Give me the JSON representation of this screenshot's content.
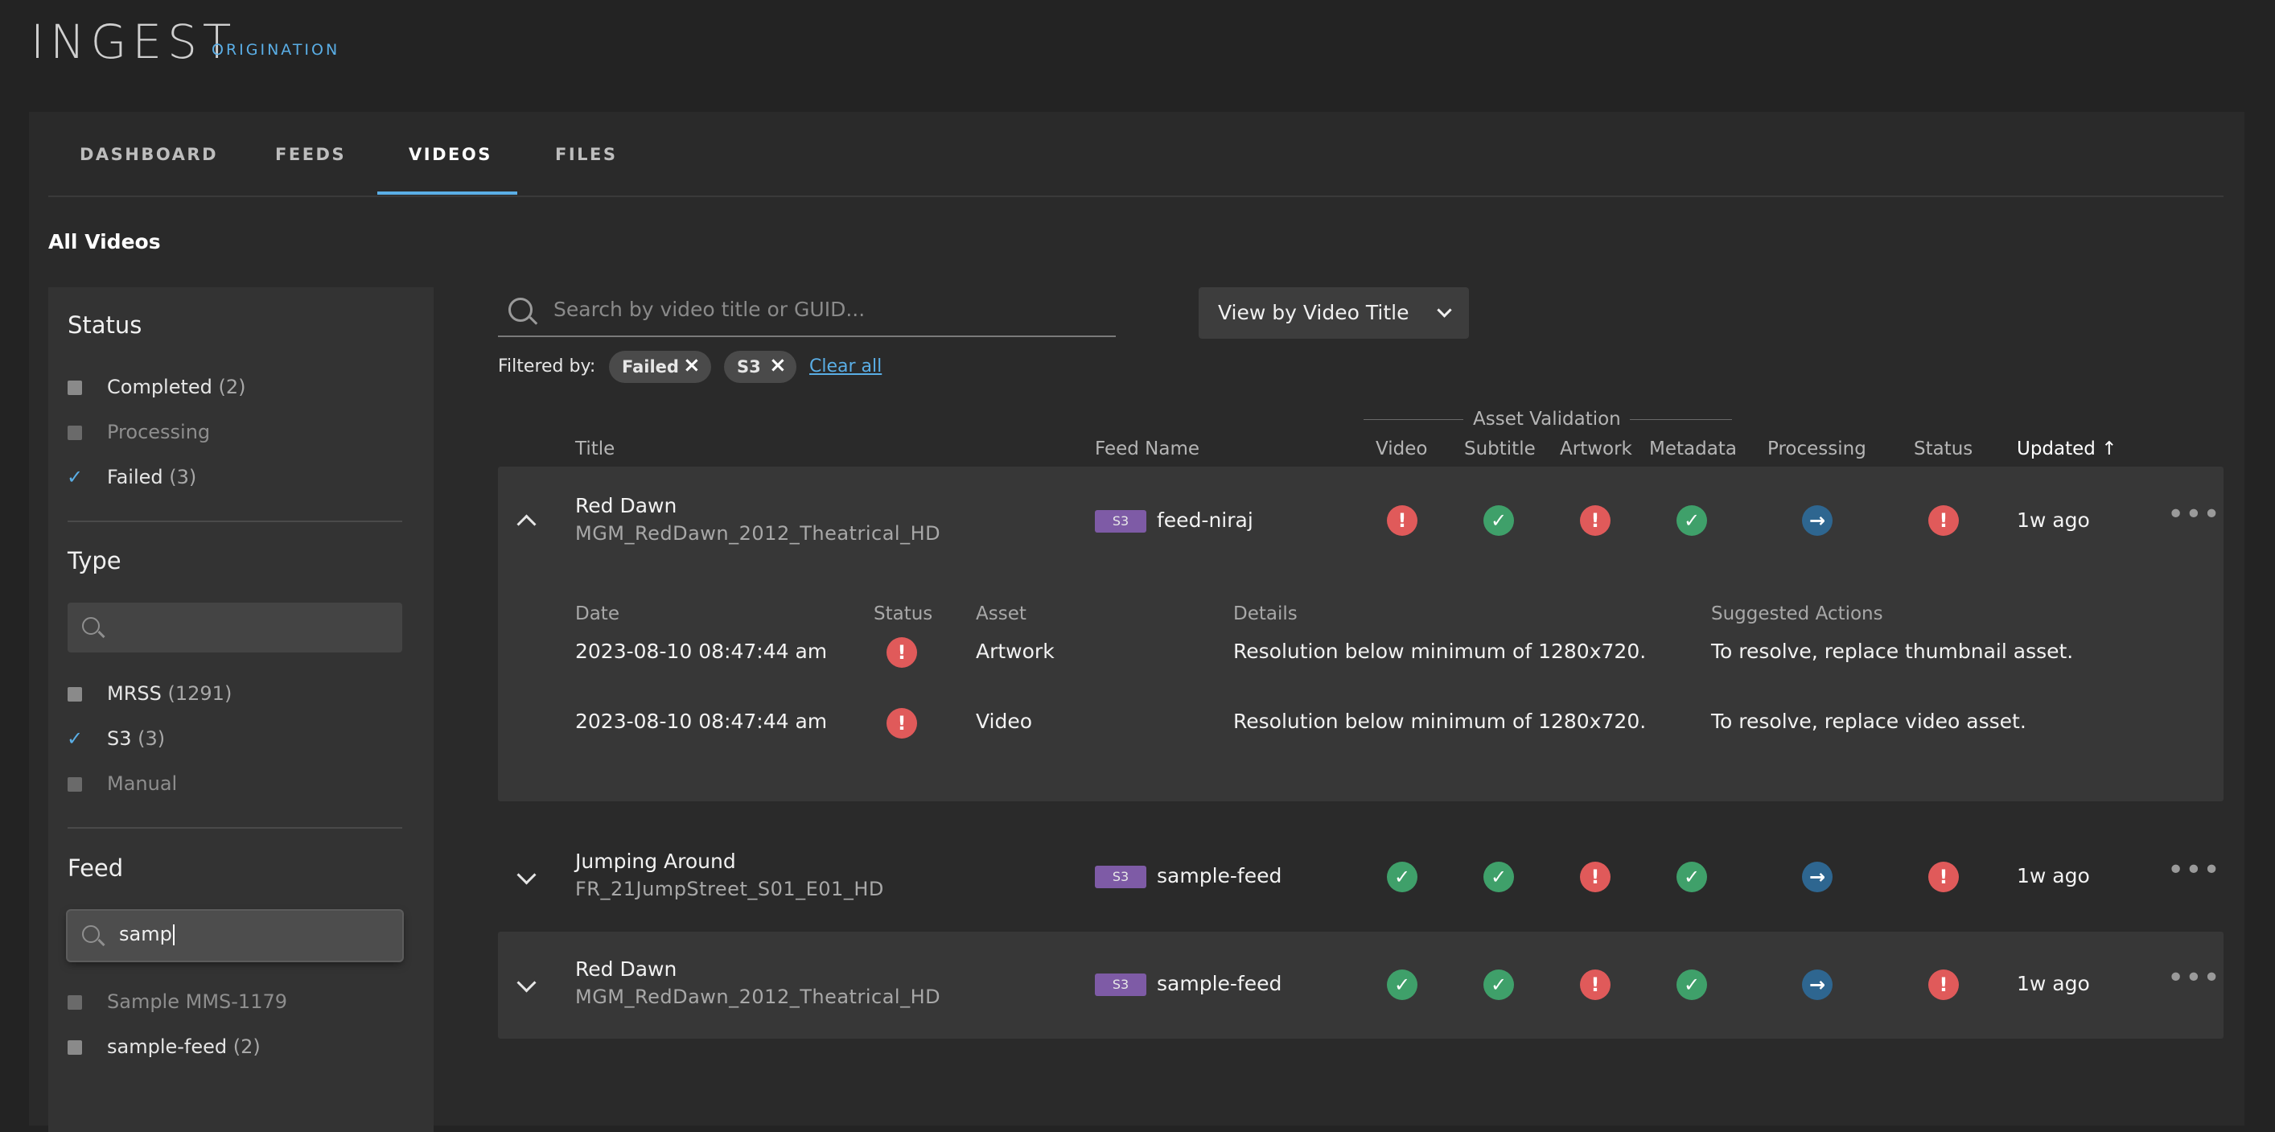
{
  "app": {
    "logo": "INGEST",
    "logo_sub": "ORIGINATION"
  },
  "tabs": [
    {
      "label": "DASHBOARD"
    },
    {
      "label": "FEEDS"
    },
    {
      "label": "VIDEOS"
    },
    {
      "label": "FILES"
    }
  ],
  "page_title": "All Videos",
  "sidebar": {
    "status": {
      "heading": "Status",
      "items": [
        {
          "label": "Completed",
          "count": "(2)"
        },
        {
          "label": "Processing",
          "count": ""
        },
        {
          "label": "Failed",
          "count": "(3)"
        }
      ]
    },
    "type": {
      "heading": "Type",
      "search_value": "",
      "items": [
        {
          "label": "MRSS",
          "count": "(1291)"
        },
        {
          "label": "S3",
          "count": "(3)"
        },
        {
          "label": "Manual",
          "count": ""
        }
      ]
    },
    "feed": {
      "heading": "Feed",
      "search_value": "samp",
      "items": [
        {
          "label": "Sample MMS-1179",
          "count": ""
        },
        {
          "label": "sample-feed",
          "count": "(2)"
        }
      ]
    }
  },
  "search": {
    "placeholder": "Search by video title or GUID..."
  },
  "view_by": {
    "label": "View by Video Title"
  },
  "filters": {
    "label": "Filtered by:",
    "chips": [
      {
        "label": "Failed"
      },
      {
        "label": "S3"
      }
    ],
    "clear_all": "Clear all"
  },
  "columns": {
    "title": "Title",
    "feed_name": "Feed Name",
    "asset_validation": "Asset Validation",
    "video": "Video",
    "subtitle": "Subtitle",
    "artwork": "Artwork",
    "metadata": "Metadata",
    "processing": "Processing",
    "status": "Status",
    "updated": "Updated ↑"
  },
  "rows": [
    {
      "title": "Red Dawn",
      "guid": "MGM_RedDawn_2012_Theatrical_HD",
      "badge": "S3",
      "feed": "feed-niraj",
      "video": "error",
      "subtitle": "ok",
      "artwork": "error",
      "metadata": "ok",
      "processing": "arrow",
      "status": "error",
      "updated": "1w ago",
      "expanded": true,
      "details": {
        "headers": {
          "date": "Date",
          "status": "Status",
          "asset": "Asset",
          "details": "Details",
          "actions": "Suggested Actions"
        },
        "items": [
          {
            "date": "2023-08-10 08:47:44 am",
            "asset": "Artwork",
            "details": "Resolution below minimum of 1280x720.",
            "action": "To resolve, replace thumbnail asset."
          },
          {
            "date": "2023-08-10 08:47:44 am",
            "asset": "Video",
            "details": "Resolution below minimum of 1280x720.",
            "action": "To resolve, replace video asset."
          }
        ]
      }
    },
    {
      "title": "Jumping Around",
      "guid": "FR_21JumpStreet_S01_E01_HD",
      "badge": "S3",
      "feed": "sample-feed",
      "video": "ok",
      "subtitle": "ok",
      "artwork": "error",
      "metadata": "ok",
      "processing": "arrow",
      "status": "error",
      "updated": "1w ago",
      "expanded": false
    },
    {
      "title": "Red Dawn",
      "guid": "MGM_RedDawn_2012_Theatrical_HD",
      "badge": "S3",
      "feed": "sample-feed",
      "video": "ok",
      "subtitle": "ok",
      "artwork": "error",
      "metadata": "ok",
      "processing": "arrow",
      "status": "error",
      "updated": "1w ago",
      "expanded": false
    }
  ],
  "colors": {
    "accent": "#5aaee6",
    "error": "#e05a5a",
    "ok": "#3fa06a",
    "processing": "#2e6690",
    "badge": "#7e5ba6"
  }
}
